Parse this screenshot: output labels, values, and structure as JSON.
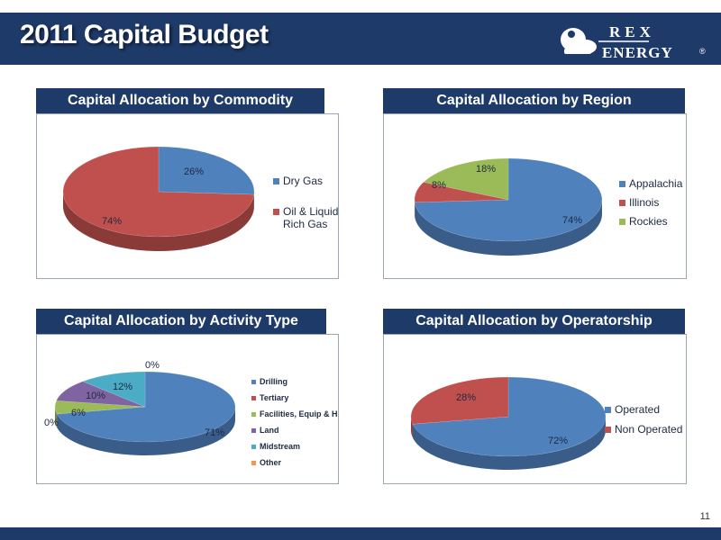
{
  "slide": {
    "title": "2011 Capital Budget",
    "page_number": "11"
  },
  "logo": {
    "line1": "REX",
    "line2": "ENERGY",
    "mark": "®"
  },
  "colors": {
    "header_bg": "#1e3a68"
  },
  "chart_data": [
    {
      "type": "pie",
      "title": "Capital Allocation by Commodity",
      "categories": [
        "Dry Gas",
        "Oil & Liquids Rich Gas"
      ],
      "values": [
        26,
        74
      ],
      "labels": [
        "26%",
        "74%"
      ],
      "colors": [
        "#4f81bd",
        "#c0504d"
      ],
      "legend_lines": [
        [
          "Dry Gas"
        ],
        [
          "Oil & Liquids",
          "Rich Gas"
        ]
      ],
      "legend_position": "right"
    },
    {
      "type": "pie",
      "title": "Capital Allocation by Region",
      "categories": [
        "Appalachia",
        "Illinois",
        "Rockies"
      ],
      "values": [
        74,
        8,
        18
      ],
      "labels": [
        "74%",
        "8%",
        "18%"
      ],
      "colors": [
        "#4f81bd",
        "#c0504d",
        "#9bbb59"
      ],
      "legend_lines": [
        [
          "Appalachia"
        ],
        [
          "Illinois"
        ],
        [
          "Rockies"
        ]
      ],
      "legend_position": "right"
    },
    {
      "type": "pie",
      "title": "Capital Allocation by Activity Type",
      "categories": [
        "Drilling",
        "Tertiary",
        "Facilities, Equip & HSE",
        "Land",
        "Midstream",
        "Other"
      ],
      "values": [
        71,
        0,
        6,
        10,
        12,
        0
      ],
      "labels": [
        "71%",
        "0%",
        "6%",
        "10%",
        "12%",
        "0%"
      ],
      "colors": [
        "#4f81bd",
        "#c0504d",
        "#9bbb59",
        "#8064a2",
        "#4bacc6",
        "#f79646"
      ],
      "legend_lines": [
        [
          "Drilling"
        ],
        [
          "Tertiary"
        ],
        [
          "Facilities, Equip & HSE"
        ],
        [
          "Land"
        ],
        [
          "Midstream"
        ],
        [
          "Other"
        ]
      ],
      "legend_position": "right"
    },
    {
      "type": "pie",
      "title": "Capital Allocation by Operatorship",
      "categories": [
        "Operated",
        "Non Operated"
      ],
      "values": [
        72,
        28
      ],
      "labels": [
        "72%",
        "28%"
      ],
      "colors": [
        "#4f81bd",
        "#c0504d"
      ],
      "legend_lines": [
        [
          "Operated"
        ],
        [
          "Non Operated"
        ]
      ],
      "legend_position": "right"
    }
  ]
}
